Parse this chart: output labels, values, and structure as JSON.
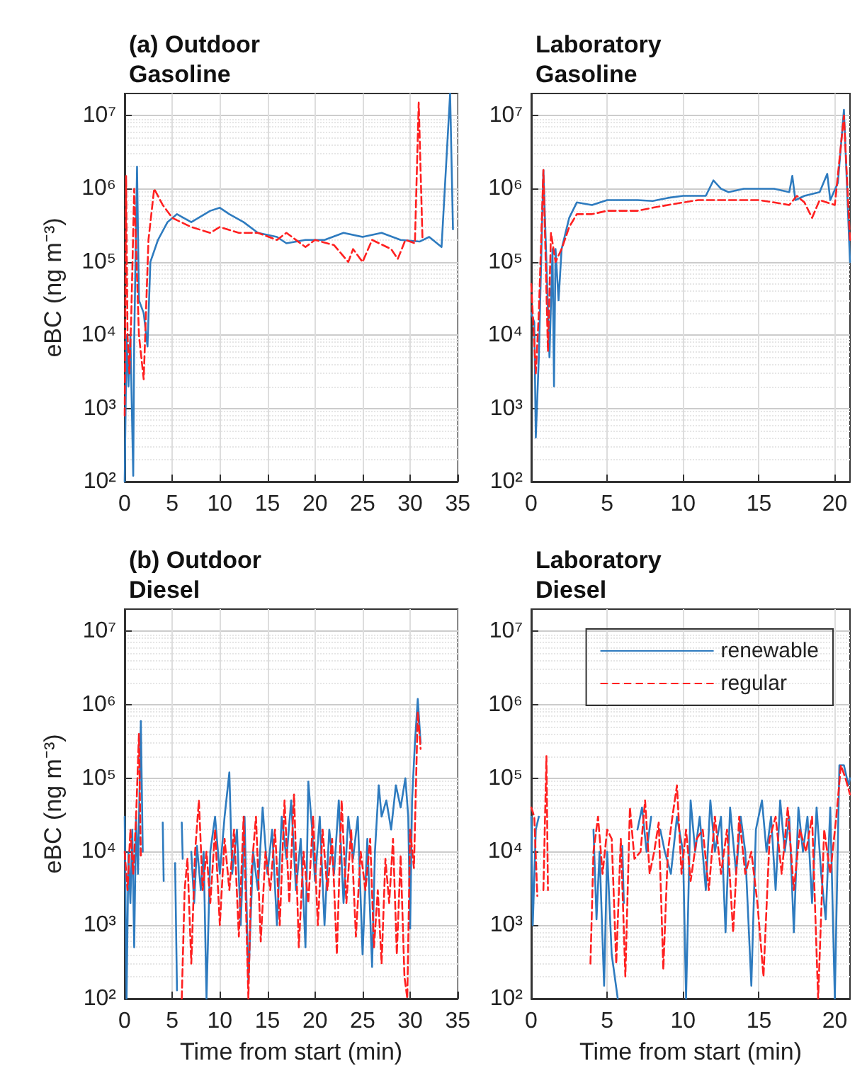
{
  "chart_data": [
    {
      "type": "line",
      "title": "(a) Outdoor\nGasoline",
      "ylabel": "eBC (ng m⁻³)",
      "log": "y",
      "grid": true,
      "legend": false,
      "xlim": [
        0,
        35
      ],
      "xticks": [
        0,
        5,
        10,
        15,
        20,
        25,
        30,
        35
      ],
      "ylim": [
        100,
        20000000
      ],
      "yticks": [
        {
          "value": 100,
          "label": "10²"
        },
        {
          "value": 1000,
          "label": "10³"
        },
        {
          "value": 10000,
          "label": "10⁴"
        },
        {
          "value": 100000,
          "label": "10⁵"
        },
        {
          "value": 1000000,
          "label": "10⁶"
        },
        {
          "value": 10000000,
          "label": "10⁷"
        }
      ],
      "series": [
        {
          "color": "#2e7bbf",
          "line_style": "solid",
          "x": [
            0,
            0.2,
            0.4,
            0.6,
            0.8,
            0.9,
            1.0,
            1.3,
            1.5,
            2.0,
            2.4,
            2.7,
            3.5,
            4.5,
            5.5,
            7,
            9,
            10,
            11,
            12.5,
            14,
            16,
            17,
            19,
            21,
            23,
            25,
            27,
            29,
            31,
            32,
            33.3,
            34.2,
            34.5
          ],
          "values": [
            100,
            10000,
            2000,
            10000,
            500,
            120,
            8000,
            2000000,
            30000,
            20000,
            7000,
            100000,
            200000,
            350000,
            450000,
            350000,
            500000,
            550000,
            450000,
            350000,
            250000,
            220000,
            180000,
            200000,
            200000,
            250000,
            220000,
            250000,
            200000,
            190000,
            220000,
            160000,
            20000000,
            280000
          ]
        },
        {
          "color": "#ff2020",
          "line_style": "dashed",
          "x": [
            0,
            0.15,
            0.3,
            0.5,
            0.7,
            1.0,
            1.5,
            2.0,
            2.5,
            3.1,
            4,
            5,
            7,
            9,
            10,
            12,
            14,
            16,
            17,
            19,
            20,
            22,
            23.5,
            24,
            25,
            26,
            28,
            28.7,
            29.5,
            30.5,
            30.9,
            31.3
          ],
          "values": [
            800,
            1500000,
            10000,
            3000,
            20000,
            1000000,
            10000,
            2500,
            200000,
            1000000,
            600000,
            400000,
            300000,
            250000,
            300000,
            250000,
            250000,
            200000,
            250000,
            160000,
            200000,
            170000,
            100000,
            150000,
            100000,
            200000,
            150000,
            110000,
            200000,
            180000,
            15000000,
            200000
          ]
        }
      ]
    },
    {
      "type": "line",
      "title": "Laboratory\nGasoline",
      "log": "y",
      "grid": true,
      "legend": false,
      "xlim": [
        0,
        21
      ],
      "xticks": [
        0,
        5,
        10,
        15,
        20
      ],
      "ylim": [
        100,
        20000000
      ],
      "yticks": [
        {
          "value": 100,
          "label": "10²"
        },
        {
          "value": 1000,
          "label": "10³"
        },
        {
          "value": 10000,
          "label": "10⁴"
        },
        {
          "value": 100000,
          "label": "10⁵"
        },
        {
          "value": 1000000,
          "label": "10⁶"
        },
        {
          "value": 10000000,
          "label": "10⁷"
        }
      ],
      "series": [
        {
          "color": "#2e7bbf",
          "line_style": "solid",
          "x": [
            0,
            0.2,
            0.3,
            0.5,
            0.8,
            1.0,
            1.2,
            1.4,
            1.5,
            1.6,
            1.8,
            2,
            2.5,
            3,
            4,
            5,
            6,
            7,
            8,
            9,
            10,
            11,
            11.5,
            12,
            12.5,
            13,
            14,
            15,
            16,
            17,
            17.2,
            17.4,
            18,
            19,
            19.5,
            19.7,
            20.2,
            20.6,
            21
          ],
          "values": [
            20000,
            15000,
            400,
            5000,
            1800000,
            100000,
            5000,
            150000,
            2000,
            150000,
            30000,
            150000,
            400000,
            650000,
            600000,
            700000,
            700000,
            700000,
            680000,
            750000,
            800000,
            800000,
            800000,
            1300000,
            1000000,
            900000,
            1000000,
            1000000,
            1000000,
            900000,
            1500000,
            700000,
            800000,
            900000,
            1600000,
            700000,
            1200000,
            12000000,
            100000
          ]
        },
        {
          "color": "#ff2020",
          "line_style": "dashed",
          "x": [
            0,
            0.3,
            0.5,
            0.8,
            1.1,
            1.3,
            1.6,
            2,
            2.5,
            3,
            4,
            5,
            6,
            7,
            8,
            9,
            10,
            11,
            12,
            13,
            14,
            15,
            16,
            17,
            17.5,
            18,
            18.5,
            19,
            20,
            20.6,
            21
          ],
          "values": [
            50000,
            3000,
            20000,
            1800000,
            6000,
            250000,
            100000,
            150000,
            300000,
            450000,
            450000,
            500000,
            500000,
            500000,
            550000,
            600000,
            650000,
            700000,
            700000,
            700000,
            700000,
            700000,
            650000,
            600000,
            800000,
            650000,
            400000,
            700000,
            600000,
            10000000,
            200000
          ]
        }
      ]
    },
    {
      "type": "line",
      "title": "(b) Outdoor\nDiesel",
      "xlabel": "Time from start (min)",
      "ylabel": "eBC (ng m⁻³)",
      "log": "y",
      "grid": true,
      "legend": false,
      "xlim": [
        0,
        35
      ],
      "xticks": [
        0,
        5,
        10,
        15,
        20,
        25,
        30,
        35
      ],
      "ylim": [
        100,
        20000000
      ],
      "yticks": [
        {
          "value": 100,
          "label": "10²"
        },
        {
          "value": 1000,
          "label": "10³"
        },
        {
          "value": 10000,
          "label": "10⁴"
        },
        {
          "value": 100000,
          "label": "10⁵"
        },
        {
          "value": 1000000,
          "label": "10⁶"
        },
        {
          "value": 10000000,
          "label": "10⁷"
        }
      ],
      "series": [
        {
          "color": "#2e7bbf",
          "line_style": "solid",
          "x": [
            0,
            0.2,
            0.4,
            0.6,
            0.8,
            1.0,
            1.2,
            1.4,
            1.7,
            1.9,
            2.0,
            4.0,
            4.1,
            4.3,
            5.3,
            5.5,
            5.7,
            6.0,
            6.1,
            6.3,
            7,
            7.3,
            7.6,
            8,
            8.3,
            8.6,
            9,
            9.5,
            10,
            10.5,
            11,
            11.3,
            11.8,
            12.2,
            12.6,
            13,
            13.5,
            14,
            14.5,
            15,
            15.5,
            16,
            16.5,
            17,
            17.5,
            18,
            18.5,
            19,
            19.3,
            19.7,
            20,
            20.5,
            21,
            21.5,
            22,
            22.5,
            23,
            23.5,
            24,
            24.5,
            25,
            25.5,
            26,
            26.3,
            26.7,
            27,
            27.5,
            28,
            28.5,
            29,
            29.5,
            29.8,
            30,
            30.2,
            30.5,
            30.8,
            31.1
          ],
          "values": [
            30000,
            100,
            10000,
            2000,
            20000,
            500,
            30000,
            5000,
            600000,
            10000,
            null,
            25000,
            4000,
            null,
            7000,
            130,
            null,
            25000,
            8000,
            null,
            10000,
            2000,
            12000,
            3000,
            10000,
            100,
            10000,
            30000,
            5000,
            30000,
            120000,
            5000,
            20000,
            1000,
            30000,
            170,
            10000,
            3000,
            40000,
            5000,
            20000,
            1000,
            30000,
            8000,
            50000,
            3000,
            15000,
            500,
            90000,
            20000,
            4000,
            30000,
            1000,
            20000,
            5000,
            50000,
            2000,
            30000,
            8000,
            30000,
            400,
            15000,
            270,
            10000,
            80000,
            30000,
            50000,
            20000,
            80000,
            40000,
            100000,
            30000,
            900,
            50000,
            300000,
            1200000,
            300000
          ]
        },
        {
          "color": "#ff2020",
          "line_style": "dashed",
          "x": [
            0,
            0.3,
            0.6,
            0.9,
            1.2,
            1.5,
            1.7,
            1.9,
            6.0,
            6.3,
            6.6,
            7,
            7.4,
            7.8,
            8.2,
            8.6,
            9,
            9.5,
            10,
            10.5,
            11,
            11.5,
            12,
            12.5,
            13,
            13.3,
            13.8,
            14.3,
            14.8,
            15.3,
            15.8,
            16.3,
            16.8,
            17.3,
            17.8,
            18.3,
            18.8,
            19.3,
            19.8,
            20.3,
            20.8,
            21.3,
            21.8,
            22.3,
            22.8,
            23.3,
            23.8,
            24.3,
            24.8,
            25.3,
            25.8,
            26.2,
            26.6,
            27,
            27.4,
            27.8,
            28.2,
            28.6,
            29,
            29.4,
            29.7,
            30,
            30.4,
            30.8,
            31.1
          ],
          "values": [
            10000,
            3000,
            20000,
            5000,
            30000,
            400000,
            8000,
            null,
            100,
            3000,
            8000,
            300,
            10000,
            50000,
            3000,
            10000,
            2000,
            20000,
            1000,
            15000,
            3000,
            20000,
            700,
            30000,
            100,
            5000,
            30000,
            600,
            10000,
            3000,
            20000,
            1000,
            50000,
            2000,
            60000,
            500,
            10000,
            2000,
            30000,
            1000,
            20000,
            3000,
            15000,
            400,
            50000,
            2000,
            20000,
            700,
            10000,
            3000,
            15000,
            500,
            3000,
            300,
            8000,
            2000,
            15000,
            400,
            9000,
            200,
            100,
            20000,
            6000,
            800000,
            250000
          ]
        }
      ]
    },
    {
      "type": "line",
      "title": "Laboratory\nDiesel",
      "xlabel": "Time from start (min)",
      "log": "y",
      "grid": true,
      "legend": "top right",
      "xlim": [
        0,
        21
      ],
      "xticks": [
        0,
        5,
        10,
        15,
        20
      ],
      "ylim": [
        100,
        20000000
      ],
      "yticks": [
        {
          "value": 100,
          "label": "10²"
        },
        {
          "value": 1000,
          "label": "10³"
        },
        {
          "value": 10000,
          "label": "10⁴"
        },
        {
          "value": 100000,
          "label": "10⁵"
        },
        {
          "value": 1000000,
          "label": "10⁶"
        },
        {
          "value": 10000000,
          "label": "10⁷"
        }
      ],
      "series": [
        {
          "name": "renewable",
          "color": "#2e7bbf",
          "line_style": "solid",
          "x": [
            0,
            0.1,
            0.3,
            0.5,
            0.6,
            4.1,
            4.3,
            4.5,
            4.8,
            5.0,
            5.3,
            5.7,
            5.8,
            6,
            6.1,
            6.3,
            7,
            7.3,
            7.6,
            7.9,
            8.2,
            8.5,
            8.8,
            9.2,
            9.6,
            10,
            10.2,
            10.5,
            10.8,
            11.1,
            11.5,
            11.8,
            12.1,
            12.5,
            12.8,
            13.1,
            13.5,
            13.8,
            14.1,
            14.5,
            14.8,
            15.2,
            15.5,
            15.8,
            16.1,
            16.4,
            16.7,
            17,
            17.3,
            17.6,
            17.9,
            18.2,
            18.5,
            18.8,
            19.1,
            19.4,
            19.7,
            20,
            20.3,
            20.6,
            20.9,
            21
          ],
          "values": [
            30000,
            1000,
            20000,
            30000,
            null,
            20000,
            1200,
            10000,
            150,
            10000,
            400,
            100,
            null,
            12000,
            2000,
            null,
            20000,
            40000,
            10000,
            30000,
            null,
            20000,
            10000,
            5000,
            30000,
            10000,
            100,
            50000,
            10000,
            30000,
            3000,
            50000,
            10000,
            30000,
            800,
            40000,
            5000,
            30000,
            10000,
            150,
            20000,
            50000,
            10000,
            30000,
            3000,
            50000,
            10000,
            30000,
            800,
            40000,
            10000,
            30000,
            2000,
            40000,
            5000,
            1200,
            40000,
            100,
            150000,
            150000,
            80000,
            100000
          ]
        },
        {
          "name": "regular",
          "color": "#ff2020",
          "line_style": "dashed",
          "x": [
            0,
            0.2,
            0.4,
            0.6,
            0.8,
            1.0,
            1.1,
            1.2,
            3.9,
            4.1,
            4.4,
            4.7,
            5.0,
            5.3,
            5.6,
            5.9,
            6.2,
            6.5,
            6.8,
            7.2,
            7.5,
            7.8,
            8.1,
            8.4,
            8.7,
            9.0,
            9.3,
            9.6,
            9.9,
            10.2,
            10.5,
            10.9,
            11.3,
            11.7,
            12.1,
            12.5,
            12.9,
            13.3,
            13.7,
            14.1,
            14.5,
            14.9,
            15.3,
            15.7,
            16.1,
            16.5,
            16.9,
            17.3,
            17.7,
            18.1,
            18.5,
            18.9,
            19.3,
            19.7,
            20.1,
            20.4,
            20.7,
            21
          ],
          "values": [
            40000,
            30000,
            2500,
            null,
            3000,
            200000,
            3000,
            null,
            300,
            10000,
            30000,
            5000,
            20000,
            15000,
            300,
            15000,
            200,
            40000,
            8000,
            10000,
            50000,
            5000,
            10000,
            25000,
            250,
            10000,
            30000,
            80000,
            5000,
            20000,
            4000,
            15000,
            20000,
            3000,
            30000,
            5000,
            20000,
            800,
            30000,
            5000,
            10000,
            2000,
            200,
            15000,
            30000,
            5000,
            40000,
            3000,
            20000,
            10000,
            30000,
            100,
            20000,
            5000,
            30000,
            150000,
            100000,
            60000
          ]
        }
      ]
    }
  ]
}
